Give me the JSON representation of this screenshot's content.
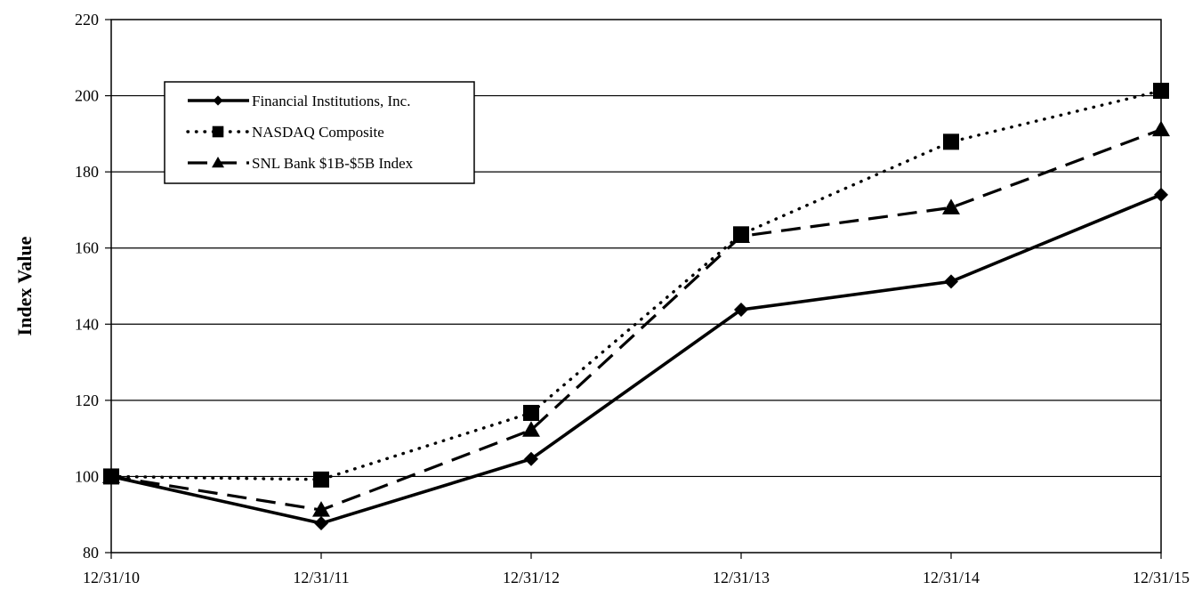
{
  "chart_data": {
    "type": "line",
    "title": "",
    "xlabel": "",
    "ylabel": "Index Value",
    "categories": [
      "12/31/10",
      "12/31/11",
      "12/31/12",
      "12/31/13",
      "12/31/14",
      "12/31/15"
    ],
    "ylim": [
      80,
      220
    ],
    "yticks": [
      80,
      100,
      120,
      140,
      160,
      180,
      200,
      220
    ],
    "grid": "horizontal",
    "legend_position": "top-left",
    "series": [
      {
        "name": "Financial Institutions, Inc.",
        "values": [
          100.0,
          87.7,
          104.6,
          143.8,
          151.2,
          174.0
        ],
        "marker": "diamond",
        "dash": "solid",
        "color": "#000000"
      },
      {
        "name": "NASDAQ Composite",
        "values": [
          100.0,
          99.2,
          116.7,
          163.6,
          187.9,
          201.3
        ],
        "marker": "square",
        "dash": "dotted",
        "color": "#000000"
      },
      {
        "name": "SNL Bank $1B-$5B Index",
        "values": [
          100.0,
          91.2,
          112.2,
          163.1,
          170.6,
          191.1
        ],
        "marker": "triangle",
        "dash": "dashed",
        "color": "#000000"
      }
    ]
  }
}
